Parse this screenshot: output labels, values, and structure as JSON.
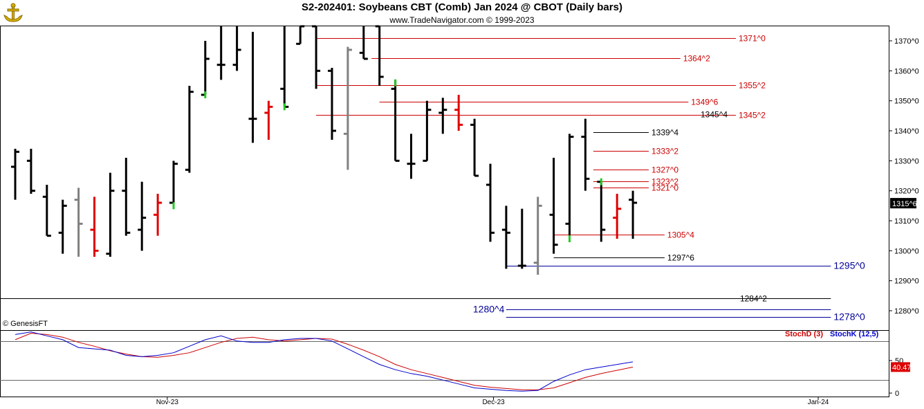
{
  "header": {
    "title": "S2-202401:  Soybeans CBT (Comb) Jan 2024 @ CBOT  (Daily bars)",
    "subtitle": "www.TradeNavigator.com © 1999-2023",
    "copyright": "© GenesisFT"
  },
  "colors": {
    "up_bar": "#000000",
    "down_bar": "#e00000",
    "gray_bar": "#808080",
    "green_tick": "#22cc22",
    "red_line": "#cc0000",
    "blue_line": "#000099",
    "stoch_d": "#cc0000",
    "stoch_k": "#0000cc"
  },
  "chart_data": [
    {
      "type": "bar",
      "subtype": "ohlc",
      "title": "S2-202401:  Soybeans CBT (Comb) Jan 2024 @ CBOT  (Daily bars)",
      "ylim": [
        1276,
        1375
      ],
      "y_ticks": [
        "1370^0",
        "1360^0",
        "1350^0",
        "1340^0",
        "1330^0",
        "1320^0",
        "1310^0",
        "1300^0",
        "1290^0",
        "1280^0"
      ],
      "y_tick_values": [
        1370,
        1360,
        1350,
        1340,
        1330,
        1320,
        1310,
        1300,
        1290,
        1280
      ],
      "x_ticks": [
        "Nov-23",
        "Dec-23",
        "Jan-24"
      ],
      "x_tick_bar_index": [
        9.6,
        30.2,
        50.7
      ],
      "last_price_label": "1315^6",
      "last_price": 1315.75,
      "bars": [
        {
          "o": 1328,
          "h": 1334,
          "l": 1317,
          "c": 1333,
          "color": "black"
        },
        {
          "o": 1330,
          "h": 1334,
          "l": 1319,
          "c": 1320,
          "color": "black"
        },
        {
          "o": 1318,
          "h": 1322,
          "l": 1305,
          "c": 1305,
          "color": "black"
        },
        {
          "o": 1306,
          "h": 1317,
          "l": 1299,
          "c": 1315,
          "color": "black"
        },
        {
          "o": 1317,
          "h": 1321,
          "l": 1298,
          "c": 1309,
          "color": "gray"
        },
        {
          "o": 1307,
          "h": 1318,
          "l": 1298,
          "c": 1300,
          "color": "red"
        },
        {
          "o": 1299,
          "h": 1326,
          "l": 1298,
          "c": 1320,
          "color": "black"
        },
        {
          "o": 1320,
          "h": 1331,
          "l": 1305,
          "c": 1306,
          "color": "black"
        },
        {
          "o": 1307,
          "h": 1323,
          "l": 1300,
          "c": 1311,
          "color": "black"
        },
        {
          "o": 1312,
          "h": 1319,
          "l": 1305,
          "c": 1316,
          "color": "red"
        },
        {
          "o": 1316,
          "h": 1330,
          "l": 1315,
          "c": 1329,
          "color": "black"
        },
        {
          "o": 1327,
          "h": 1355,
          "l": 1326,
          "c": 1353,
          "color": "black"
        },
        {
          "o": 1352,
          "h": 1370,
          "l": 1352,
          "c": 1364,
          "color": "black"
        },
        {
          "o": 1362,
          "h": 1375,
          "l": 1357,
          "c": 1362,
          "color": "black"
        },
        {
          "o": 1362,
          "h": 1375,
          "l": 1360,
          "c": 1367,
          "color": "black"
        },
        {
          "o": 1344,
          "h": 1373,
          "l": 1336,
          "c": 1344,
          "color": "black"
        },
        {
          "o": 1346,
          "h": 1350,
          "l": 1337,
          "c": 1348,
          "color": "red"
        },
        {
          "o": 1354,
          "h": 1375,
          "l": 1348,
          "c": 1348,
          "color": "black"
        },
        {
          "o": 1369,
          "h": 1375,
          "l": 1369,
          "c": 1375,
          "color": "black"
        },
        {
          "o": 1375,
          "h": 1375,
          "l": 1354,
          "c": 1360,
          "color": "black"
        },
        {
          "o": 1360,
          "h": 1361,
          "l": 1337,
          "c": 1340,
          "color": "black"
        },
        {
          "o": 1339,
          "h": 1368,
          "l": 1327,
          "c": 1367,
          "color": "gray"
        },
        {
          "o": 1366,
          "h": 1375,
          "l": 1364,
          "c": 1364,
          "color": "black"
        },
        {
          "o": 1375,
          "h": 1375,
          "l": 1355,
          "c": 1358,
          "color": "black"
        },
        {
          "o": 1354,
          "h": 1357,
          "l": 1330,
          "c": 1330,
          "color": "black"
        },
        {
          "o": 1329,
          "h": 1339,
          "l": 1324,
          "c": 1329,
          "color": "black"
        },
        {
          "o": 1330,
          "h": 1350,
          "l": 1330,
          "c": 1347,
          "color": "black"
        },
        {
          "o": 1346,
          "h": 1351,
          "l": 1339,
          "c": 1347,
          "color": "black"
        },
        {
          "o": 1347,
          "h": 1352,
          "l": 1340,
          "c": 1342,
          "color": "red"
        },
        {
          "o": 1342,
          "h": 1344,
          "l": 1325,
          "c": 1325,
          "color": "black"
        },
        {
          "o": 1322,
          "h": 1329,
          "l": 1303,
          "c": 1306,
          "color": "black"
        },
        {
          "o": 1307,
          "h": 1315,
          "l": 1294,
          "c": 1306,
          "color": "black"
        },
        {
          "o": 1295,
          "h": 1314,
          "l": 1294,
          "c": 1295,
          "color": "black"
        },
        {
          "o": 1296,
          "h": 1318,
          "l": 1292,
          "c": 1315,
          "color": "gray"
        },
        {
          "o": 1312,
          "h": 1331,
          "l": 1299,
          "c": 1302,
          "color": "black"
        },
        {
          "o": 1309,
          "h": 1339,
          "l": 1304,
          "c": 1338,
          "color": "black"
        },
        {
          "o": 1338,
          "h": 1344,
          "l": 1320,
          "c": 1324,
          "color": "black"
        },
        {
          "o": 1323,
          "h": 1323,
          "l": 1303,
          "c": 1307,
          "color": "black"
        },
        {
          "o": 1311,
          "h": 1319,
          "l": 1304,
          "c": 1314,
          "color": "red"
        },
        {
          "o": 1317,
          "h": 1320,
          "l": 1304,
          "c": 1316,
          "color": "black"
        }
      ],
      "green_ticks": [
        {
          "bar": 10,
          "value": 1315
        },
        {
          "bar": 12,
          "value": 1352
        },
        {
          "bar": 17,
          "value": 1348
        },
        {
          "bar": 24,
          "value": 1356
        },
        {
          "bar": 35,
          "value": 1304
        },
        {
          "bar": 37,
          "value": 1323
        }
      ],
      "levels": [
        {
          "label": "1371^0",
          "value": 1371,
          "color": "red",
          "from_bar": 19.0,
          "to_bar": 45.5
        },
        {
          "label": "1364^2",
          "value": 1364.25,
          "color": "red",
          "from_bar": 22.5,
          "to_bar": 42.0
        },
        {
          "label": "1355^2",
          "value": 1355.25,
          "color": "red",
          "from_bar": 19.0,
          "to_bar": 45.5
        },
        {
          "label": "1349^6",
          "value": 1349.75,
          "color": "red",
          "from_bar": 23.0,
          "to_bar": 42.5
        },
        {
          "label": "1345^2",
          "value": 1345.25,
          "color": "red",
          "from_bar": 19.0,
          "to_bar": 45.5
        },
        {
          "label": "1339^4",
          "value": 1339.5,
          "color": "black",
          "from_bar": 36.5,
          "to_bar": 40.0
        },
        {
          "label": "1333^2",
          "value": 1333.25,
          "color": "red",
          "from_bar": 36.5,
          "to_bar": 40.0
        },
        {
          "label": "1327^0",
          "value": 1327,
          "color": "red",
          "from_bar": 36.5,
          "to_bar": 40.0
        },
        {
          "label": "1323^2",
          "value": 1323.25,
          "color": "red",
          "from_bar": 36.5,
          "to_bar": 40.0
        },
        {
          "label": "1321^0",
          "value": 1321,
          "color": "red",
          "from_bar": 36.5,
          "to_bar": 40.0
        },
        {
          "label": "1305^4",
          "value": 1305.5,
          "color": "red",
          "from_bar": 34.0,
          "to_bar": 41.0
        },
        {
          "label": "1297^6",
          "value": 1297.75,
          "color": "black",
          "from_bar": 34.0,
          "to_bar": 41.0
        },
        {
          "label": "1295^0",
          "value": 1295,
          "color": "blue",
          "from_bar": 31.0,
          "to_bar": 51.5
        },
        {
          "label": "1284^2",
          "value": 1284.25,
          "color": "black",
          "from_bar": -1.0,
          "to_bar": 51.5
        },
        {
          "label": "1280^4",
          "value": 1280.5,
          "color": "blue",
          "from_bar": 31.0,
          "to_bar": 51.5
        },
        {
          "label": "1278^0",
          "value": 1278,
          "color": "blue",
          "from_bar": 31.0,
          "to_bar": 51.5
        }
      ],
      "extra_labels": [
        {
          "label": "1345^4",
          "value": 1345.5
        }
      ]
    },
    {
      "type": "line",
      "title": "StochD (3)  StochK (12,5)",
      "ylim": [
        0,
        100
      ],
      "y_ticks": [
        "0",
        "50"
      ],
      "y_tick_values": [
        0,
        50
      ],
      "last_value_label": "40.47",
      "series": [
        {
          "name": "StochD (3)",
          "color": "red",
          "values": [
            82,
            92,
            90,
            86,
            78,
            72,
            65,
            60,
            56,
            55,
            58,
            62,
            70,
            78,
            84,
            86,
            82,
            80,
            82,
            84,
            83,
            75,
            66,
            56,
            44,
            36,
            30,
            24,
            18,
            12,
            9,
            7,
            5,
            5,
            8,
            16,
            24,
            30,
            35,
            40
          ]
        },
        {
          "name": "StochK (12,5)",
          "color": "blue",
          "values": [
            90,
            94,
            88,
            82,
            70,
            68,
            66,
            58,
            56,
            58,
            62,
            72,
            82,
            88,
            80,
            78,
            78,
            82,
            84,
            84,
            80,
            68,
            56,
            44,
            36,
            30,
            26,
            20,
            14,
            8,
            6,
            4,
            3,
            4,
            18,
            28,
            36,
            40,
            44,
            48
          ]
        }
      ],
      "hlines": [
        80,
        20
      ]
    }
  ]
}
